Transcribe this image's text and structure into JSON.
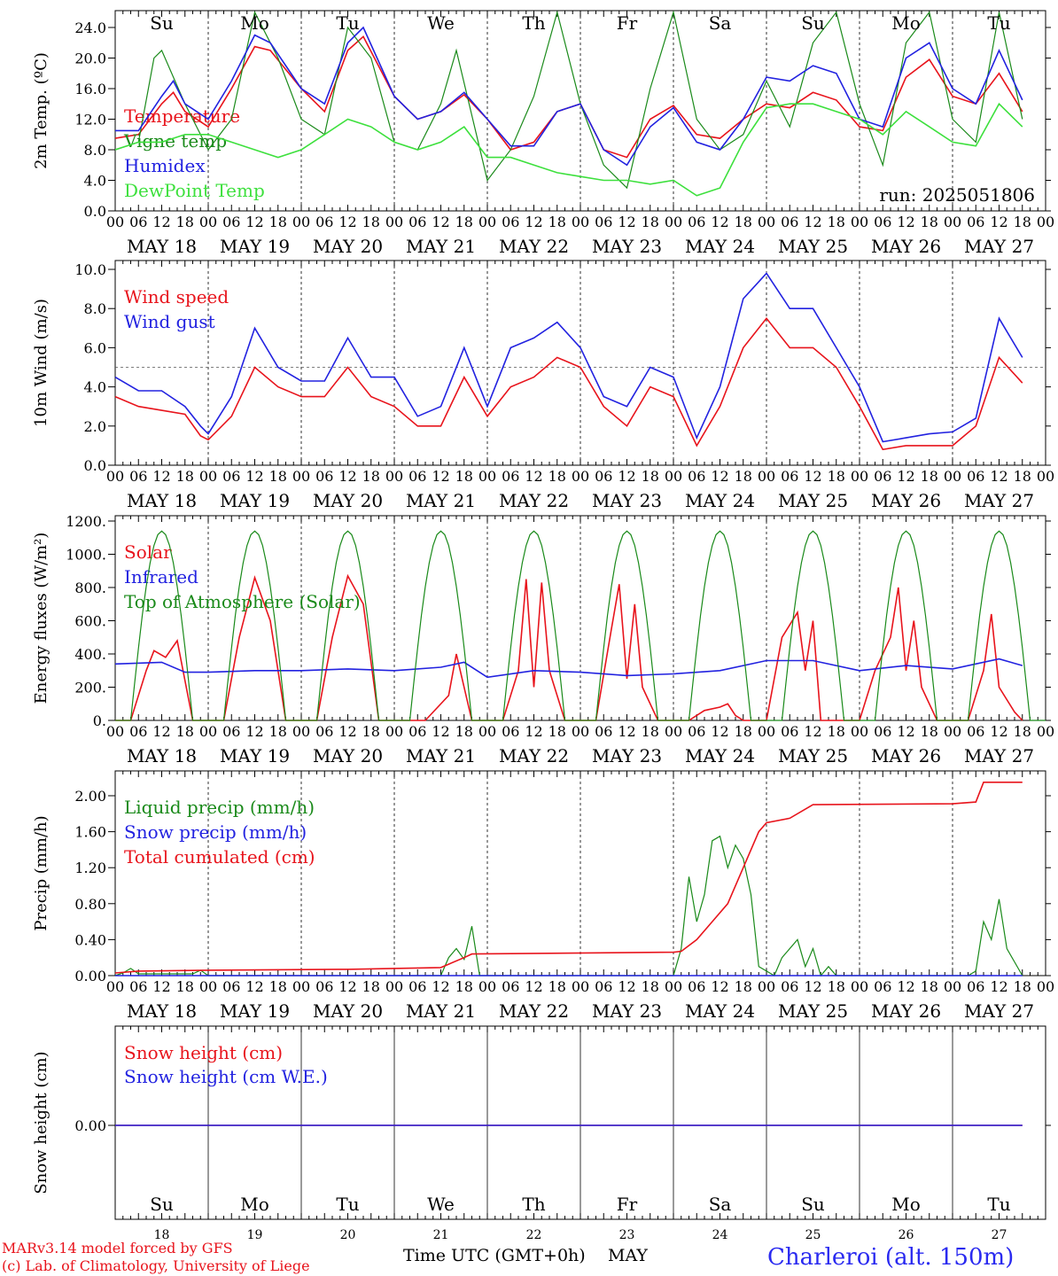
{
  "run_label": "run: 2025051806",
  "days": [
    "MAY 18",
    "MAY 19",
    "MAY 20",
    "MAY 21",
    "MAY 22",
    "MAY 23",
    "MAY 24",
    "MAY 25",
    "MAY 26",
    "MAY 27"
  ],
  "hour_ticks": [
    "00",
    "06",
    "12",
    "18"
  ],
  "weekdays": [
    {
      "t": "Su",
      "weekend": true
    },
    {
      "t": "Mo",
      "weekend": false
    },
    {
      "t": "Tu",
      "weekend": false
    },
    {
      "t": "We",
      "weekend": false
    },
    {
      "t": "Th",
      "weekend": false
    },
    {
      "t": "Fr",
      "weekend": false
    },
    {
      "t": "Sa",
      "weekend": true
    },
    {
      "t": "Su",
      "weekend": true
    },
    {
      "t": "Mo",
      "weekend": false
    },
    {
      "t": "Tu",
      "weekend": false
    }
  ],
  "day_numbers": [
    "18",
    "19",
    "20",
    "21",
    "22",
    "23",
    "24",
    "25",
    "26",
    "27"
  ],
  "footer": {
    "model": "MARv3.14 model forced by GFS",
    "copyright": "(c) Lab. of Climatology, University of Liege",
    "xlabel": "Time UTC (GMT+0h)",
    "month": "MAY",
    "station": "Charleroi (alt. 150m)"
  },
  "colors": {
    "red": "#e8141c",
    "blue": "#2222e0",
    "green": "#1a8a1a",
    "lightgreen": "#3de03d"
  },
  "chart_data": [
    {
      "type": "line",
      "ylabel": "2m Temp. (ºC)",
      "ylim": [
        0,
        26
      ],
      "yticks": [
        "0.0",
        "4.0",
        "8.0",
        "12.0",
        "16.0",
        "20.0",
        "24.0"
      ],
      "x_unit": "hours since May 18 00 UTC",
      "series": [
        {
          "name": "Temperature",
          "color": "red",
          "x": [
            0,
            6,
            12,
            15,
            18,
            24,
            30,
            36,
            40,
            48,
            54,
            60,
            64,
            72,
            78,
            84,
            90,
            96,
            102,
            108,
            114,
            120,
            126,
            132,
            138,
            144,
            150,
            156,
            162,
            168,
            174,
            180,
            186,
            192,
            198,
            204,
            210,
            216,
            222,
            228,
            234
          ],
          "y": [
            9.5,
            10,
            14,
            15.5,
            13,
            11,
            16,
            21.5,
            21,
            16,
            13,
            21,
            22.8,
            15,
            12,
            13,
            15.2,
            12,
            8,
            9,
            13,
            14,
            8,
            7,
            12,
            13.8,
            10,
            9.5,
            12,
            14,
            13.5,
            15.5,
            14.5,
            11,
            10.5,
            17.5,
            19.8,
            15,
            14,
            18,
            13
          ]
        },
        {
          "name": "Vigne temp",
          "color": "green",
          "x": [
            0,
            6,
            10,
            12,
            18,
            24,
            30,
            36,
            42,
            48,
            54,
            60,
            66,
            72,
            78,
            84,
            88,
            96,
            102,
            108,
            114,
            120,
            126,
            132,
            138,
            144,
            150,
            156,
            162,
            168,
            174,
            180,
            186,
            192,
            198,
            204,
            210,
            216,
            222,
            228,
            234
          ],
          "y": [
            8,
            9,
            20,
            21,
            14,
            8,
            12,
            26,
            20,
            12,
            10,
            24,
            20,
            9,
            8,
            14,
            21,
            4,
            8,
            15,
            26,
            14,
            6,
            3,
            16,
            26,
            12,
            8,
            10,
            17,
            11,
            22,
            26,
            14,
            6,
            22,
            26,
            12,
            9,
            26,
            12
          ]
        },
        {
          "name": "Humidex",
          "color": "blue",
          "x": [
            0,
            6,
            12,
            15,
            18,
            24,
            30,
            36,
            40,
            48,
            54,
            60,
            64,
            72,
            78,
            84,
            90,
            96,
            102,
            108,
            114,
            120,
            126,
            132,
            138,
            144,
            150,
            156,
            162,
            168,
            174,
            180,
            186,
            192,
            198,
            204,
            210,
            216,
            222,
            228,
            234
          ],
          "y": [
            10.5,
            10.5,
            15,
            17,
            14,
            12,
            17,
            23,
            22,
            16,
            14,
            22,
            24,
            15,
            12,
            13,
            15.5,
            12,
            8.5,
            8.5,
            13,
            14,
            8,
            6,
            11,
            13.5,
            9,
            8,
            12,
            17.5,
            17,
            19,
            18,
            12,
            11,
            20,
            22,
            16,
            14,
            21,
            14.5
          ]
        },
        {
          "name": "DewPoint Temp",
          "color": "lightgreen",
          "x": [
            0,
            6,
            12,
            18,
            24,
            30,
            36,
            42,
            48,
            54,
            60,
            66,
            72,
            78,
            84,
            90,
            96,
            102,
            108,
            114,
            120,
            126,
            132,
            138,
            144,
            150,
            156,
            162,
            168,
            174,
            180,
            186,
            192,
            198,
            204,
            210,
            216,
            222,
            228,
            234
          ],
          "y": [
            8,
            9,
            9,
            10,
            10,
            9,
            8,
            7,
            8,
            10,
            12,
            11,
            9,
            8,
            9,
            11,
            7,
            7,
            6,
            5,
            4.5,
            4,
            4,
            3.5,
            4,
            2,
            3,
            9,
            13.5,
            14,
            14,
            13,
            12,
            10,
            13,
            11,
            9,
            8.5,
            14,
            11
          ]
        }
      ]
    },
    {
      "type": "line",
      "ylabel": "10m Wind (m/s)",
      "ylim": [
        0,
        10
      ],
      "yticks": [
        "0.0",
        "2.0",
        "4.0",
        "6.0",
        "8.0",
        "10.0"
      ],
      "reference_line": 5,
      "series": [
        {
          "name": "Wind speed",
          "color": "red",
          "x": [
            0,
            6,
            12,
            18,
            22,
            24,
            30,
            36,
            42,
            48,
            54,
            60,
            66,
            72,
            78,
            84,
            90,
            96,
            102,
            108,
            114,
            120,
            126,
            132,
            138,
            144,
            150,
            156,
            162,
            168,
            174,
            180,
            186,
            192,
            198,
            204,
            210,
            216,
            222,
            228,
            234
          ],
          "y": [
            3.5,
            3,
            2.8,
            2.6,
            1.5,
            1.3,
            2.5,
            5,
            4,
            3.5,
            3.5,
            5,
            3.5,
            3,
            2,
            2,
            4.5,
            2.5,
            4,
            4.5,
            5.5,
            5,
            3,
            2,
            4,
            3.5,
            1,
            3,
            6,
            7.5,
            6,
            6,
            5,
            3,
            0.8,
            1,
            1,
            1,
            2,
            5.5,
            4.2
          ]
        },
        {
          "name": "Wind gust",
          "color": "blue",
          "x": [
            0,
            6,
            12,
            18,
            22,
            24,
            30,
            36,
            42,
            48,
            54,
            60,
            66,
            72,
            78,
            84,
            90,
            96,
            102,
            108,
            114,
            120,
            126,
            132,
            138,
            144,
            150,
            156,
            162,
            168,
            174,
            180,
            186,
            192,
            198,
            204,
            210,
            216,
            222,
            228,
            234
          ],
          "y": [
            4.5,
            3.8,
            3.8,
            3,
            2,
            1.6,
            3.5,
            7,
            5,
            4.3,
            4.3,
            6.5,
            4.5,
            4.5,
            2.5,
            3,
            6,
            3,
            6,
            6.5,
            7.3,
            6,
            3.5,
            3,
            5,
            4.5,
            1.4,
            4,
            8.5,
            9.8,
            8,
            8,
            6,
            4,
            1.2,
            1.4,
            1.6,
            1.7,
            2.4,
            7.5,
            5.5
          ]
        }
      ]
    },
    {
      "type": "line",
      "ylabel": "Energy fluxes (W/m²)",
      "ylim": [
        0,
        1200
      ],
      "yticks": [
        "0.",
        "200.",
        "400.",
        "600.",
        "800.",
        "1000.",
        "1200."
      ],
      "series": [
        {
          "name": "Solar",
          "color": "red",
          "x": [
            0,
            4,
            8,
            10,
            13,
            16,
            20,
            24,
            28,
            32,
            36,
            40,
            44,
            48,
            52,
            56,
            60,
            64,
            68,
            72,
            76,
            80,
            86,
            88,
            92,
            96,
            100,
            104,
            106,
            108,
            110,
            112,
            116,
            120,
            124,
            128,
            130,
            132,
            134,
            136,
            140,
            144,
            148,
            152,
            156,
            158,
            160,
            162,
            166,
            168,
            172,
            176,
            178,
            180,
            182,
            184,
            188,
            192,
            196,
            200,
            202,
            204,
            206,
            208,
            212,
            216,
            220,
            224,
            226,
            228,
            232,
            234
          ],
          "y": [
            0,
            0,
            300,
            420,
            380,
            480,
            0,
            0,
            0,
            500,
            860,
            600,
            0,
            0,
            0,
            500,
            870,
            700,
            0,
            0,
            0,
            0,
            150,
            400,
            0,
            0,
            0,
            300,
            850,
            200,
            830,
            300,
            0,
            0,
            0,
            550,
            820,
            250,
            700,
            200,
            0,
            0,
            0,
            60,
            80,
            100,
            30,
            0,
            0,
            0,
            500,
            650,
            300,
            600,
            0,
            0,
            0,
            0,
            300,
            500,
            800,
            300,
            600,
            200,
            0,
            0,
            0,
            300,
            640,
            200,
            50,
            0
          ]
        },
        {
          "name": "Infrared",
          "color": "blue",
          "x": [
            0,
            12,
            18,
            24,
            36,
            48,
            60,
            72,
            84,
            90,
            96,
            108,
            120,
            132,
            144,
            156,
            168,
            180,
            192,
            204,
            216,
            228,
            234
          ],
          "y": [
            340,
            350,
            290,
            290,
            300,
            300,
            310,
            300,
            320,
            350,
            260,
            300,
            290,
            270,
            280,
            300,
            360,
            360,
            300,
            330,
            310,
            370,
            330
          ]
        },
        {
          "name": "Top of Atmosphere (Solar)",
          "color": "green",
          "daily_peak": 1140,
          "peak_hour": 12
        }
      ]
    },
    {
      "type": "line",
      "ylabel": "Precip (mm/h)",
      "ylim": [
        0,
        2.2
      ],
      "yticks": [
        "0.00",
        "0.40",
        "0.80",
        "1.20",
        "1.60",
        "2.00"
      ],
      "series": [
        {
          "name": "Liquid precip (mm/h)",
          "color": "green",
          "x": [
            0,
            2,
            4,
            6,
            20,
            22,
            24,
            84,
            86,
            88,
            90,
            92,
            94,
            144,
            146,
            148,
            150,
            152,
            154,
            156,
            158,
            160,
            162,
            164,
            166,
            168,
            170,
            172,
            176,
            178,
            180,
            182,
            184,
            186,
            220,
            222,
            224,
            226,
            228,
            230,
            234
          ],
          "y": [
            0,
            0.03,
            0.08,
            0.02,
            0.02,
            0.06,
            0,
            0,
            0.2,
            0.3,
            0.18,
            0.55,
            0,
            0,
            0.3,
            1.1,
            0.6,
            0.9,
            1.5,
            1.55,
            1.2,
            1.45,
            1.3,
            0.9,
            0.1,
            0.05,
            0,
            0.2,
            0.4,
            0.1,
            0.3,
            0,
            0.1,
            0,
            0,
            0.05,
            0.6,
            0.4,
            0.85,
            0.3,
            0
          ]
        },
        {
          "name": "Snow precip (mm/h)",
          "color": "blue",
          "x": [
            0,
            234
          ],
          "y": [
            0,
            0
          ]
        },
        {
          "name": "Total cumulated (cm)",
          "color": "red",
          "x": [
            0,
            6,
            24,
            60,
            84,
            90,
            92,
            144,
            146,
            150,
            154,
            158,
            162,
            166,
            168,
            174,
            180,
            216,
            222,
            224,
            234
          ],
          "y": [
            0.03,
            0.05,
            0.06,
            0.07,
            0.09,
            0.2,
            0.24,
            0.26,
            0.27,
            0.4,
            0.6,
            0.8,
            1.2,
            1.6,
            1.7,
            1.75,
            1.9,
            1.91,
            1.93,
            2.15,
            2.15
          ]
        }
      ]
    },
    {
      "type": "line",
      "ylabel": "Snow height (cm)",
      "ylim": [
        -0.5,
        0.5
      ],
      "yticks": [
        "0.00"
      ],
      "series": [
        {
          "name": "Snow height (cm)",
          "color": "red",
          "x": [
            0,
            234
          ],
          "y": [
            0,
            0
          ]
        },
        {
          "name": "Snow height (cm W.E.)",
          "color": "blue",
          "x": [
            0,
            234
          ],
          "y": [
            0,
            0
          ]
        }
      ]
    }
  ]
}
